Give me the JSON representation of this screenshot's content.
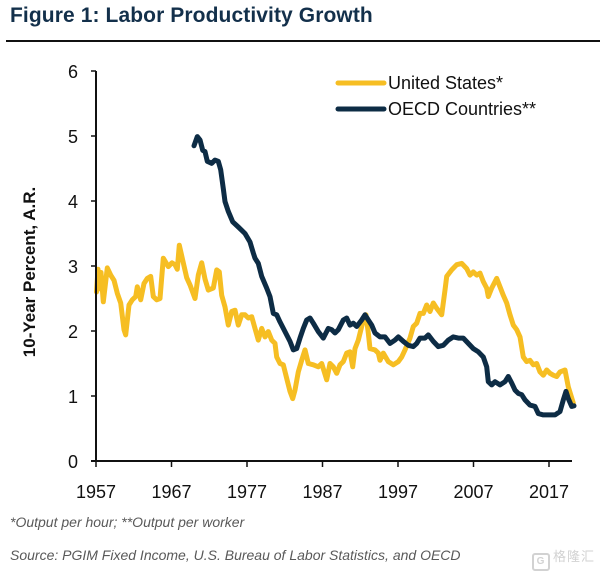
{
  "header": {
    "title": "Figure 1: Labor Productivity Growth"
  },
  "footer": {
    "footnote": "*Output per hour; **Output per worker",
    "source": "Source: PGIM Fixed Income, U.S. Bureau of Labor Statistics, and OECD",
    "watermark": "格隆汇",
    "watermark_logo": "G"
  },
  "colors": {
    "us": "#f6be23",
    "oecd": "#0d2c45",
    "title": "#13304b",
    "axis": "#111111"
  },
  "chart_data": {
    "type": "line",
    "title": "Figure 1: Labor Productivity Growth",
    "xlabel": "",
    "ylabel": "10-Year Percent, A.R.",
    "xlim": [
      1957,
      2020
    ],
    "ylim": [
      0,
      6
    ],
    "xticks": [
      1957,
      1967,
      1977,
      1987,
      1997,
      2007,
      2017
    ],
    "yticks": [
      0,
      1,
      2,
      3,
      4,
      5,
      6
    ],
    "grid": false,
    "legend_position": "top-right",
    "series": [
      {
        "name": "United States*",
        "color": "#f6be23",
        "x": [
          1957.07,
          1957.26,
          1957.46,
          1957.66,
          1957.97,
          1958.5,
          1958.95,
          1959.38,
          1959.82,
          1960.27,
          1960.71,
          1960.93,
          1961.37,
          1961.81,
          1962.26,
          1962.47,
          1962.92,
          1963.36,
          1963.79,
          1964.24,
          1964.59,
          1965.04,
          1965.48,
          1965.91,
          1966.58,
          1967.07,
          1967.46,
          1967.77,
          1968.03,
          1968.56,
          1969.01,
          1969.45,
          1970.11,
          1970.55,
          1971.0,
          1971.44,
          1971.87,
          1972.54,
          1972.99,
          1973.33,
          1973.65,
          1974.09,
          1974.52,
          1974.97,
          1975.41,
          1975.85,
          1976.3,
          1976.73,
          1977.17,
          1977.62,
          1978.06,
          1978.5,
          1978.95,
          1979.38,
          1979.82,
          1980.27,
          1980.71,
          1980.93,
          1981.37,
          1981.81,
          1982.26,
          1982.7,
          1983.05,
          1983.36,
          1983.79,
          1984.24,
          1984.68,
          1985.12,
          1985.78,
          1986.44,
          1986.89,
          1987.56,
          1987.99,
          1988.43,
          1988.88,
          1989.32,
          1989.75,
          1990.21,
          1990.64,
          1991.0,
          1991.3,
          1991.74,
          1992.4,
          1992.76,
          1993.07,
          1993.29,
          1993.95,
          1994.39,
          1994.62,
          1995.05,
          1995.72,
          1996.38,
          1997.04,
          1997.49,
          1997.93,
          1998.59,
          1999.03,
          1999.48,
          1999.91,
          2000.35,
          2000.8,
          2001.24,
          2001.68,
          2002.13,
          2002.79,
          2003.23,
          2003.45,
          2004.11,
          2004.77,
          2005.44,
          2006.1,
          2006.54,
          2006.97,
          2007.42,
          2007.86,
          2008.3,
          2008.75,
          2008.96,
          2009.41,
          2010.07,
          2010.51,
          2010.95,
          2011.4,
          2011.83,
          2012.27,
          2012.72,
          2013.16,
          2013.6,
          2014.05,
          2014.48,
          2014.92,
          2015.37,
          2015.81,
          2016.25,
          2016.69,
          2017.13,
          2017.57,
          2018.02,
          2018.46,
          2019.12,
          2019.56,
          2020.22
        ],
        "y": [
          2.6,
          2.95,
          2.65,
          2.9,
          2.45,
          2.97,
          2.86,
          2.78,
          2.58,
          2.43,
          2.02,
          1.94,
          2.4,
          2.48,
          2.53,
          2.68,
          2.48,
          2.73,
          2.81,
          2.84,
          2.53,
          2.48,
          2.5,
          3.12,
          2.99,
          3.05,
          3.02,
          2.95,
          3.32,
          3.05,
          2.82,
          2.71,
          2.5,
          2.86,
          3.05,
          2.8,
          2.63,
          2.66,
          2.94,
          2.91,
          2.55,
          2.37,
          2.09,
          2.3,
          2.32,
          2.09,
          2.25,
          2.25,
          2.2,
          2.22,
          2.04,
          1.86,
          2.04,
          1.91,
          1.99,
          1.86,
          1.81,
          1.6,
          1.5,
          1.48,
          1.27,
          1.07,
          0.96,
          1.09,
          1.37,
          1.55,
          1.71,
          1.5,
          1.48,
          1.45,
          1.5,
          1.25,
          1.5,
          1.45,
          1.35,
          1.48,
          1.53,
          1.66,
          1.68,
          1.45,
          1.73,
          1.86,
          2.17,
          2.25,
          1.97,
          1.73,
          1.71,
          1.66,
          1.55,
          1.66,
          1.53,
          1.48,
          1.53,
          1.6,
          1.71,
          1.89,
          2.07,
          2.12,
          2.27,
          2.27,
          2.4,
          2.3,
          2.43,
          2.35,
          2.25,
          2.63,
          2.84,
          2.94,
          3.02,
          3.04,
          2.96,
          2.86,
          2.91,
          2.86,
          2.89,
          2.76,
          2.66,
          2.53,
          2.66,
          2.81,
          2.68,
          2.55,
          2.43,
          2.25,
          2.09,
          2.02,
          1.91,
          1.6,
          1.53,
          1.55,
          1.48,
          1.5,
          1.37,
          1.32,
          1.4,
          1.35,
          1.32,
          1.3,
          1.37,
          1.4,
          1.14,
          0.89
        ]
      },
      {
        "name": "OECD Countries**",
        "color": "#0d2c45",
        "x": [
          1969.98,
          1970.42,
          1970.77,
          1971.13,
          1971.44,
          1971.74,
          1972.32,
          1972.76,
          1973.2,
          1973.52,
          1973.86,
          1974.09,
          1974.52,
          1975.11,
          1975.85,
          1976.73,
          1977.4,
          1977.83,
          1978.06,
          1978.5,
          1978.95,
          1979.61,
          1980.05,
          1980.48,
          1980.93,
          1981.37,
          1982.03,
          1982.7,
          1983.13,
          1983.58,
          1984.02,
          1984.46,
          1984.91,
          1985.34,
          1985.78,
          1986.44,
          1987.11,
          1987.77,
          1988.22,
          1988.66,
          1989.09,
          1989.75,
          1990.21,
          1990.64,
          1991.08,
          1991.53,
          1992.19,
          1992.63,
          1993.07,
          1993.52,
          1993.95,
          1994.62,
          1995.28,
          1995.94,
          1996.6,
          1997.04,
          1997.7,
          1998.36,
          1999.03,
          1999.48,
          1999.91,
          2000.58,
          2001.01,
          2001.68,
          2002.34,
          2003.0,
          2003.66,
          2004.32,
          2004.99,
          2005.65,
          2006.31,
          2006.97,
          2007.64,
          2008.3,
          2008.75,
          2008.96,
          2009.41,
          2009.85,
          2010.51,
          2011.17,
          2011.61,
          2012.06,
          2012.5,
          2012.93,
          2013.38,
          2013.82,
          2014.48,
          2015.15,
          2015.58,
          2016.25,
          2017.13,
          2017.79,
          2018.46,
          2018.89,
          2019.25,
          2019.56,
          2020.01,
          2020.31
        ],
        "y": [
          4.85,
          4.99,
          4.94,
          4.78,
          4.76,
          4.61,
          4.58,
          4.63,
          4.61,
          4.48,
          4.19,
          3.99,
          3.84,
          3.68,
          3.6,
          3.5,
          3.37,
          3.2,
          3.12,
          3.04,
          2.84,
          2.66,
          2.53,
          2.27,
          2.25,
          2.14,
          1.99,
          1.84,
          1.71,
          1.73,
          1.89,
          2.04,
          2.17,
          2.2,
          2.12,
          1.99,
          1.89,
          2.04,
          2.02,
          1.97,
          2.02,
          2.17,
          2.2,
          2.09,
          2.12,
          2.07,
          2.17,
          2.25,
          2.17,
          2.09,
          1.97,
          1.91,
          1.91,
          1.81,
          1.86,
          1.91,
          1.84,
          1.78,
          1.76,
          1.81,
          1.89,
          1.89,
          1.94,
          1.84,
          1.76,
          1.78,
          1.86,
          1.91,
          1.89,
          1.89,
          1.81,
          1.73,
          1.68,
          1.6,
          1.45,
          1.22,
          1.17,
          1.22,
          1.17,
          1.22,
          1.3,
          1.2,
          1.09,
          1.04,
          1.02,
          0.94,
          0.86,
          0.84,
          0.73,
          0.71,
          0.71,
          0.71,
          0.76,
          0.94,
          1.07,
          0.96,
          0.84,
          0.85
        ]
      }
    ]
  }
}
